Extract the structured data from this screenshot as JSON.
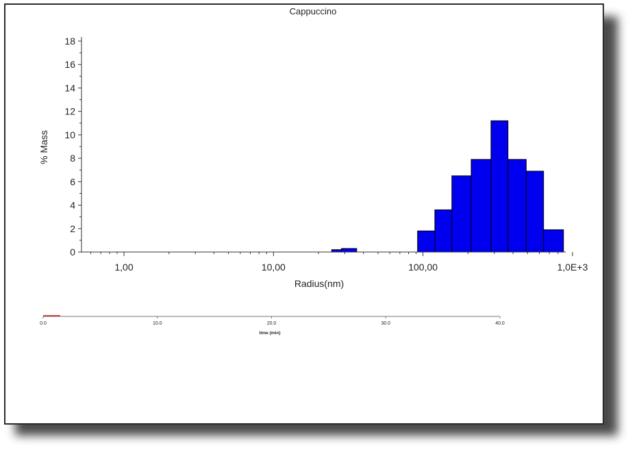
{
  "chart_data": {
    "type": "bar",
    "title": "Cappuccino",
    "xlabel": "Radius(nm)",
    "ylabel": "% Mass",
    "xscale": "log",
    "xlim": [
      0.52,
      900
    ],
    "ylim": [
      0,
      18
    ],
    "x_ticks": [
      {
        "value": 1,
        "label": "1,00"
      },
      {
        "value": 10,
        "label": "10,00"
      },
      {
        "value": 100,
        "label": "100,00"
      },
      {
        "value": 1000,
        "label": "1,0E+3"
      }
    ],
    "y_ticks": [
      0,
      2,
      4,
      6,
      8,
      10,
      12,
      14,
      16,
      18
    ],
    "bar_color": "#0000ee",
    "bars": [
      {
        "x0": 24.5,
        "x1": 28.5,
        "value": 0.2
      },
      {
        "x0": 28.5,
        "x1": 36,
        "value": 0.3
      },
      {
        "x0": 92,
        "x1": 120,
        "value": 1.8
      },
      {
        "x0": 120,
        "x1": 156,
        "value": 3.6
      },
      {
        "x0": 156,
        "x1": 210,
        "value": 6.5
      },
      {
        "x0": 210,
        "x1": 285,
        "value": 7.9
      },
      {
        "x0": 285,
        "x1": 370,
        "value": 11.2
      },
      {
        "x0": 370,
        "x1": 490,
        "value": 7.9
      },
      {
        "x0": 490,
        "x1": 640,
        "value": 6.9
      },
      {
        "x0": 640,
        "x1": 870,
        "value": 1.9
      }
    ]
  },
  "time_axis": {
    "label": "time (min)",
    "ticks": [
      {
        "value": 0,
        "label": "0.0"
      },
      {
        "value": 10,
        "label": "10.0"
      },
      {
        "value": 20,
        "label": "20.0"
      },
      {
        "value": 30,
        "label": "30.0"
      },
      {
        "value": 40,
        "label": "40.0"
      }
    ],
    "range": [
      0,
      40
    ],
    "trace_color": "#cc0000"
  }
}
